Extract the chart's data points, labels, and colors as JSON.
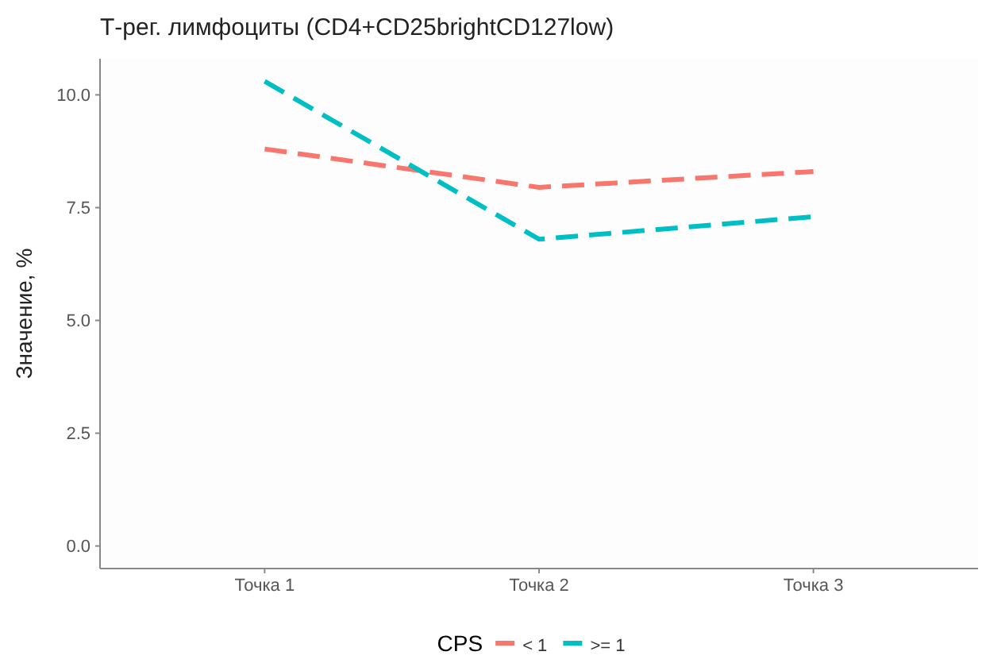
{
  "chart_data": {
    "type": "line",
    "title": "Т-рег. лимфоциты (CD4+CD25brightCD127low)",
    "ylabel": "Значение, %",
    "legend_title": "CPS",
    "categories": [
      "Точка 1",
      "Точка 2",
      "Точка 3"
    ],
    "series": [
      {
        "name": "< 1",
        "color": "#f8766d",
        "values": [
          8.8,
          7.95,
          8.3
        ]
      },
      {
        "name": ">= 1",
        "color": "#00bfc4",
        "values": [
          10.3,
          6.8,
          7.3
        ]
      }
    ],
    "ylim": [
      -0.5,
      10.8
    ],
    "yticks": [
      {
        "value": 0,
        "label": "0.0"
      },
      {
        "value": 2.5,
        "label": "2.5"
      },
      {
        "value": 5,
        "label": "5.0"
      },
      {
        "value": 7.5,
        "label": "7.5"
      },
      {
        "value": 10,
        "label": "10.0"
      }
    ],
    "grid": false,
    "legend": "bottom",
    "line_style": "dashed"
  }
}
